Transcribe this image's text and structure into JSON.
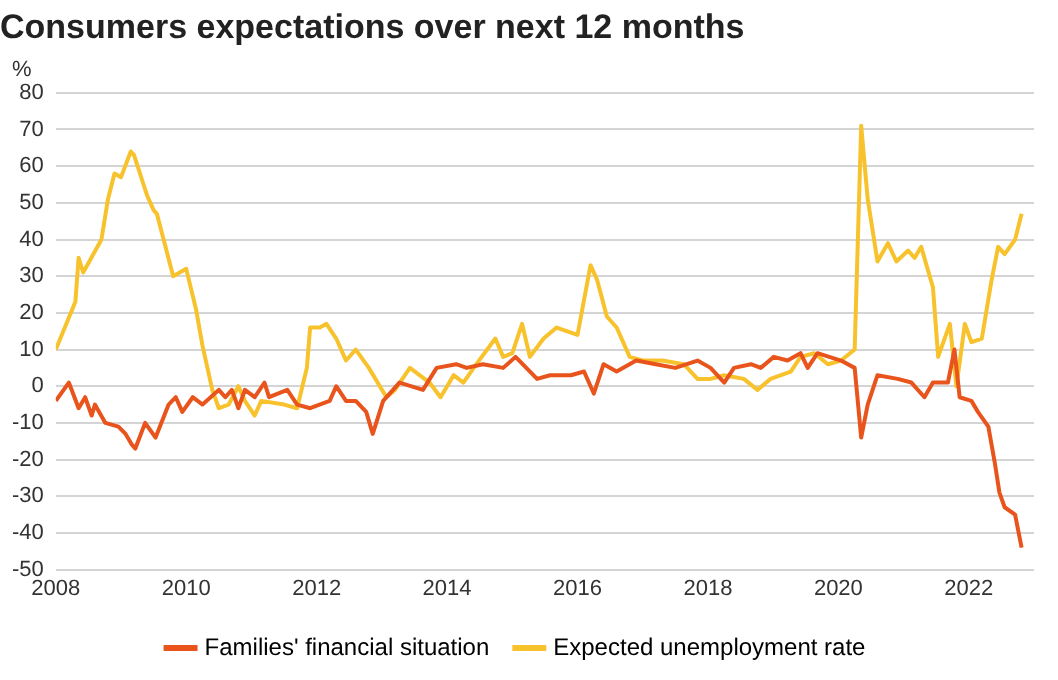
{
  "chart_data": {
    "type": "line",
    "title": "Consumers expectations over next 12 months",
    "ylabel": "%",
    "xlim": [
      2008,
      2023
    ],
    "xticks": [
      2008,
      2010,
      2012,
      2014,
      2016,
      2018,
      2020,
      2022
    ],
    "ylim": [
      -50,
      80
    ],
    "yticks": [
      -50,
      -40,
      -30,
      -20,
      -10,
      0,
      10,
      20,
      30,
      40,
      50,
      60,
      70,
      80
    ],
    "grid": "y",
    "legend": "bottom",
    "marker": "none",
    "line_style": "solid",
    "series": [
      {
        "name": "Families' financial situation",
        "color": "#e8541c",
        "x": [
          2008.0,
          2008.2,
          2008.35,
          2008.45,
          2008.55,
          2008.6,
          2008.76,
          2008.96,
          2009.07,
          2009.17,
          2009.22,
          2009.37,
          2009.53,
          2009.73,
          2009.84,
          2009.94,
          2010.1,
          2010.25,
          2010.5,
          2010.6,
          2010.7,
          2010.8,
          2010.9,
          2011.05,
          2011.2,
          2011.27,
          2011.55,
          2011.7,
          2011.9,
          2012.2,
          2012.3,
          2012.45,
          2012.6,
          2012.76,
          2012.86,
          2013.02,
          2013.27,
          2013.63,
          2013.84,
          2014.14,
          2014.3,
          2014.55,
          2014.86,
          2015.05,
          2015.38,
          2015.58,
          2015.9,
          2016.1,
          2016.25,
          2016.4,
          2016.6,
          2016.9,
          2017.2,
          2017.5,
          2017.84,
          2018.04,
          2018.25,
          2018.4,
          2018.66,
          2018.81,
          2019.01,
          2019.22,
          2019.42,
          2019.53,
          2019.68,
          2020.04,
          2020.25,
          2020.35,
          2020.45,
          2020.6,
          2020.91,
          2021.12,
          2021.32,
          2021.45,
          2021.68,
          2021.78,
          2021.86,
          2022.04,
          2022.14,
          2022.3,
          2022.4,
          2022.47,
          2022.55,
          2022.71,
          2022.81
        ],
        "values": [
          -4,
          1,
          -6,
          -3,
          -8,
          -5,
          -10,
          -11,
          -13,
          -16,
          -17,
          -10,
          -14,
          -5,
          -3,
          -7,
          -3,
          -5,
          -1,
          -3,
          -1,
          -6,
          -1,
          -3,
          1,
          -3,
          -1,
          -5,
          -6,
          -4,
          0,
          -4,
          -4,
          -7,
          -13,
          -4,
          1,
          -1,
          5,
          6,
          5,
          6,
          5,
          8,
          2,
          3,
          3,
          4,
          -2,
          6,
          4,
          7,
          6,
          5,
          7,
          5,
          1,
          5,
          6,
          5,
          8,
          7,
          9,
          5,
          9,
          7,
          5,
          -14,
          -5,
          3,
          2,
          1,
          -3,
          1,
          1,
          10,
          -3,
          -4,
          -7,
          -11,
          -21,
          -29,
          -33,
          -35,
          -44
        ]
      },
      {
        "name": "Expected unemployment rate",
        "color": "#f7c22c",
        "x": [
          2008.0,
          2008.3,
          2008.35,
          2008.42,
          2008.7,
          2008.8,
          2008.9,
          2009.0,
          2009.15,
          2009.2,
          2009.4,
          2009.5,
          2009.55,
          2009.8,
          2009.9,
          2010.0,
          2010.15,
          2010.25,
          2010.4,
          2010.5,
          2010.65,
          2010.8,
          2010.9,
          2011.05,
          2011.15,
          2011.5,
          2011.7,
          2011.85,
          2011.9,
          2012.05,
          2012.15,
          2012.3,
          2012.45,
          2012.6,
          2012.8,
          2013.07,
          2013.2,
          2013.43,
          2013.73,
          2013.9,
          2014.1,
          2014.25,
          2014.45,
          2014.74,
          2014.86,
          2015.0,
          2015.15,
          2015.27,
          2015.48,
          2015.68,
          2016.0,
          2016.2,
          2016.3,
          2016.45,
          2016.6,
          2016.8,
          2017.0,
          2017.3,
          2017.63,
          2017.84,
          2018.04,
          2018.25,
          2018.55,
          2018.76,
          2018.96,
          2019.27,
          2019.42,
          2019.63,
          2019.84,
          2020.04,
          2020.25,
          2020.35,
          2020.45,
          2020.6,
          2020.76,
          2020.89,
          2021.07,
          2021.17,
          2021.27,
          2021.45,
          2021.53,
          2021.71,
          2021.81,
          2021.94,
          2022.04,
          2022.2,
          2022.35,
          2022.45,
          2022.55,
          2022.71,
          2022.81
        ],
        "values": [
          10,
          23,
          35,
          31,
          40,
          51,
          58,
          57,
          64,
          63,
          52,
          48,
          47,
          30,
          31,
          32,
          21,
          11,
          -1,
          -6,
          -5,
          0,
          -4,
          -8,
          -4,
          -5,
          -6,
          5,
          16,
          16,
          17,
          13,
          7,
          10,
          5,
          -3,
          -1,
          5,
          1,
          -3,
          3,
          1,
          6,
          13,
          8,
          9,
          17,
          8,
          13,
          16,
          14,
          33,
          29,
          19,
          16,
          8,
          7,
          7,
          6,
          2,
          2,
          3,
          2,
          -1,
          2,
          4,
          8,
          9,
          6,
          7,
          10,
          71,
          51,
          34,
          39,
          34,
          37,
          35,
          38,
          27,
          8,
          17,
          0,
          17,
          12,
          13,
          29,
          38,
          36,
          40,
          47
        ]
      }
    ]
  }
}
